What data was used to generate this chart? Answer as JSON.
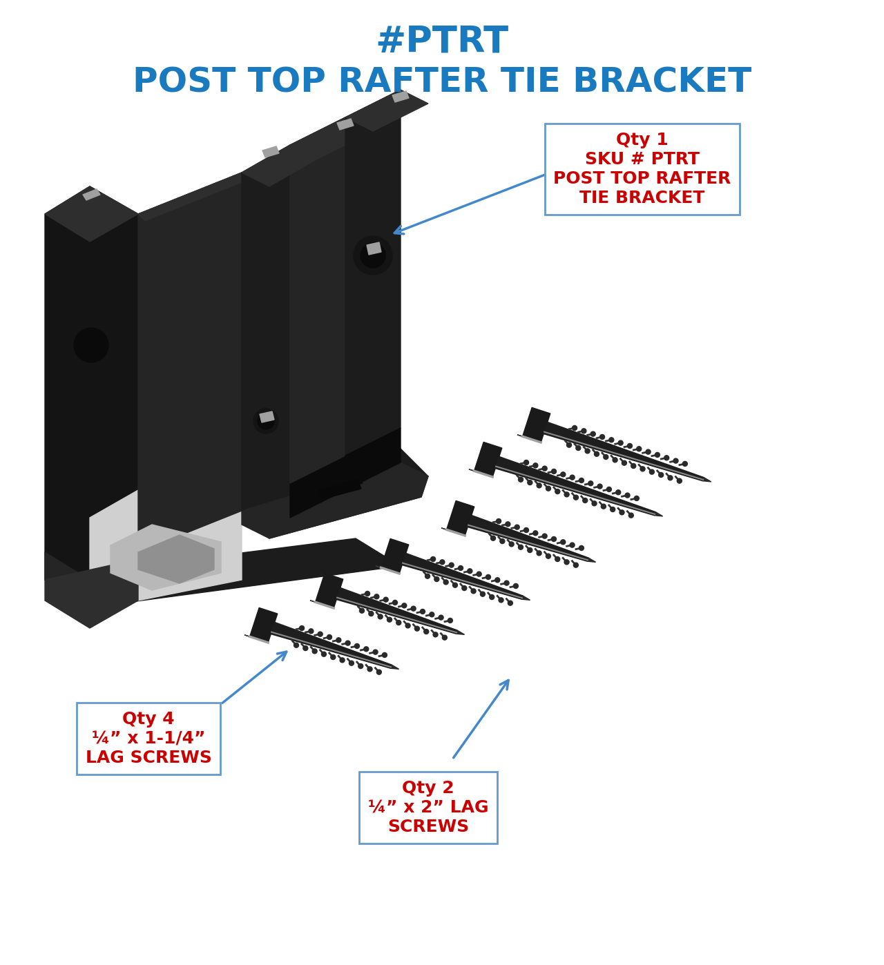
{
  "title_line1": "#PTRT",
  "title_line2": "POST TOP RAFTER TIE BRACKET",
  "title_color": "#1a7abf",
  "title_fontsize": 38,
  "subtitle_fontsize": 36,
  "background_color": "#ffffff",
  "label1_text": "Qty 1\nSKU # PTRT\nPOST TOP RAFTER\nTIE BRACKET",
  "label1_color": "#cc0000",
  "label1_fontsize": 18,
  "label2_text": "Qty 4\n¼” x 1-1/4”\nLAG SCREWS",
  "label2_color": "#cc0000",
  "label2_fontsize": 18,
  "label3_text": "Qty 2\n¼” x 2” LAG\nSCREWS",
  "label3_color": "#cc0000",
  "label3_fontsize": 18,
  "arrow_color": "#4488cc",
  "box_edge_color": "#6699cc"
}
